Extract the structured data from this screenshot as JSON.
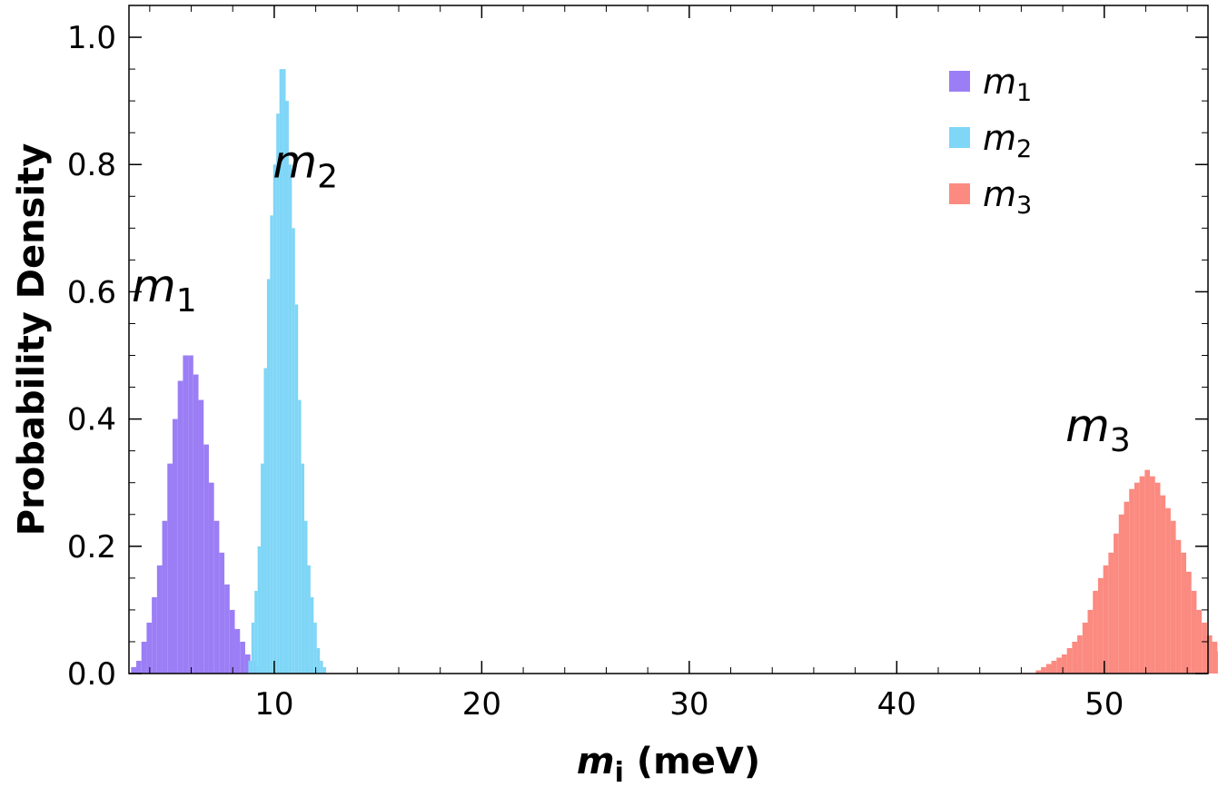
{
  "chart_data": {
    "type": "histogram",
    "xlabel": {
      "var": "m",
      "sub": "i",
      "unit": " (meV)"
    },
    "ylabel": "Probability Density",
    "xlim": [
      3,
      55
    ],
    "ylim": [
      0,
      1.05
    ],
    "x_ticks": [
      "10",
      "20",
      "30",
      "40",
      "50"
    ],
    "y_ticks": [
      "0.0",
      "0.2",
      "0.4",
      "0.6",
      "0.8",
      "1.0"
    ],
    "legend_position": "top-right",
    "series": [
      {
        "name": "m1",
        "label_var": "m",
        "label_sub": "1",
        "color": "#9b7ef5",
        "bin_start": 3.1,
        "bin_width": 0.25,
        "values": [
          0.01,
          0.02,
          0.05,
          0.08,
          0.12,
          0.17,
          0.24,
          0.33,
          0.4,
          0.46,
          0.5,
          0.5,
          0.47,
          0.43,
          0.36,
          0.3,
          0.24,
          0.19,
          0.14,
          0.1,
          0.07,
          0.05,
          0.03,
          0.02,
          0.01,
          0.005
        ]
      },
      {
        "name": "m2",
        "label_var": "m",
        "label_sub": "2",
        "color": "#7fd6f7",
        "bin_start": 8.75,
        "bin_width": 0.15,
        "values": [
          0.02,
          0.08,
          0.13,
          0.2,
          0.33,
          0.48,
          0.62,
          0.72,
          0.8,
          0.88,
          0.95,
          0.95,
          0.9,
          0.8,
          0.7,
          0.58,
          0.43,
          0.33,
          0.24,
          0.17,
          0.12,
          0.08,
          0.04,
          0.02,
          0.01
        ]
      },
      {
        "name": "m3",
        "label_var": "m",
        "label_sub": "3",
        "color": "#fb8a80",
        "bin_start": 46.7,
        "bin_width": 0.25,
        "values": [
          0.005,
          0.01,
          0.015,
          0.02,
          0.025,
          0.03,
          0.04,
          0.05,
          0.06,
          0.08,
          0.1,
          0.13,
          0.15,
          0.17,
          0.19,
          0.22,
          0.25,
          0.27,
          0.29,
          0.3,
          0.31,
          0.32,
          0.31,
          0.3,
          0.28,
          0.26,
          0.24,
          0.21,
          0.19,
          0.16,
          0.13,
          0.1,
          0.08,
          0.06,
          0.05,
          0.035,
          0.025,
          0.015,
          0.01,
          0.005
        ]
      }
    ],
    "annotations": [
      {
        "var": "m",
        "sub": "1",
        "x": 4.7,
        "y": 0.585
      },
      {
        "var": "m",
        "sub": "2",
        "x": 11.5,
        "y": 0.78
      },
      {
        "var": "m",
        "sub": "3",
        "x": 49.7,
        "y": 0.365
      }
    ]
  }
}
